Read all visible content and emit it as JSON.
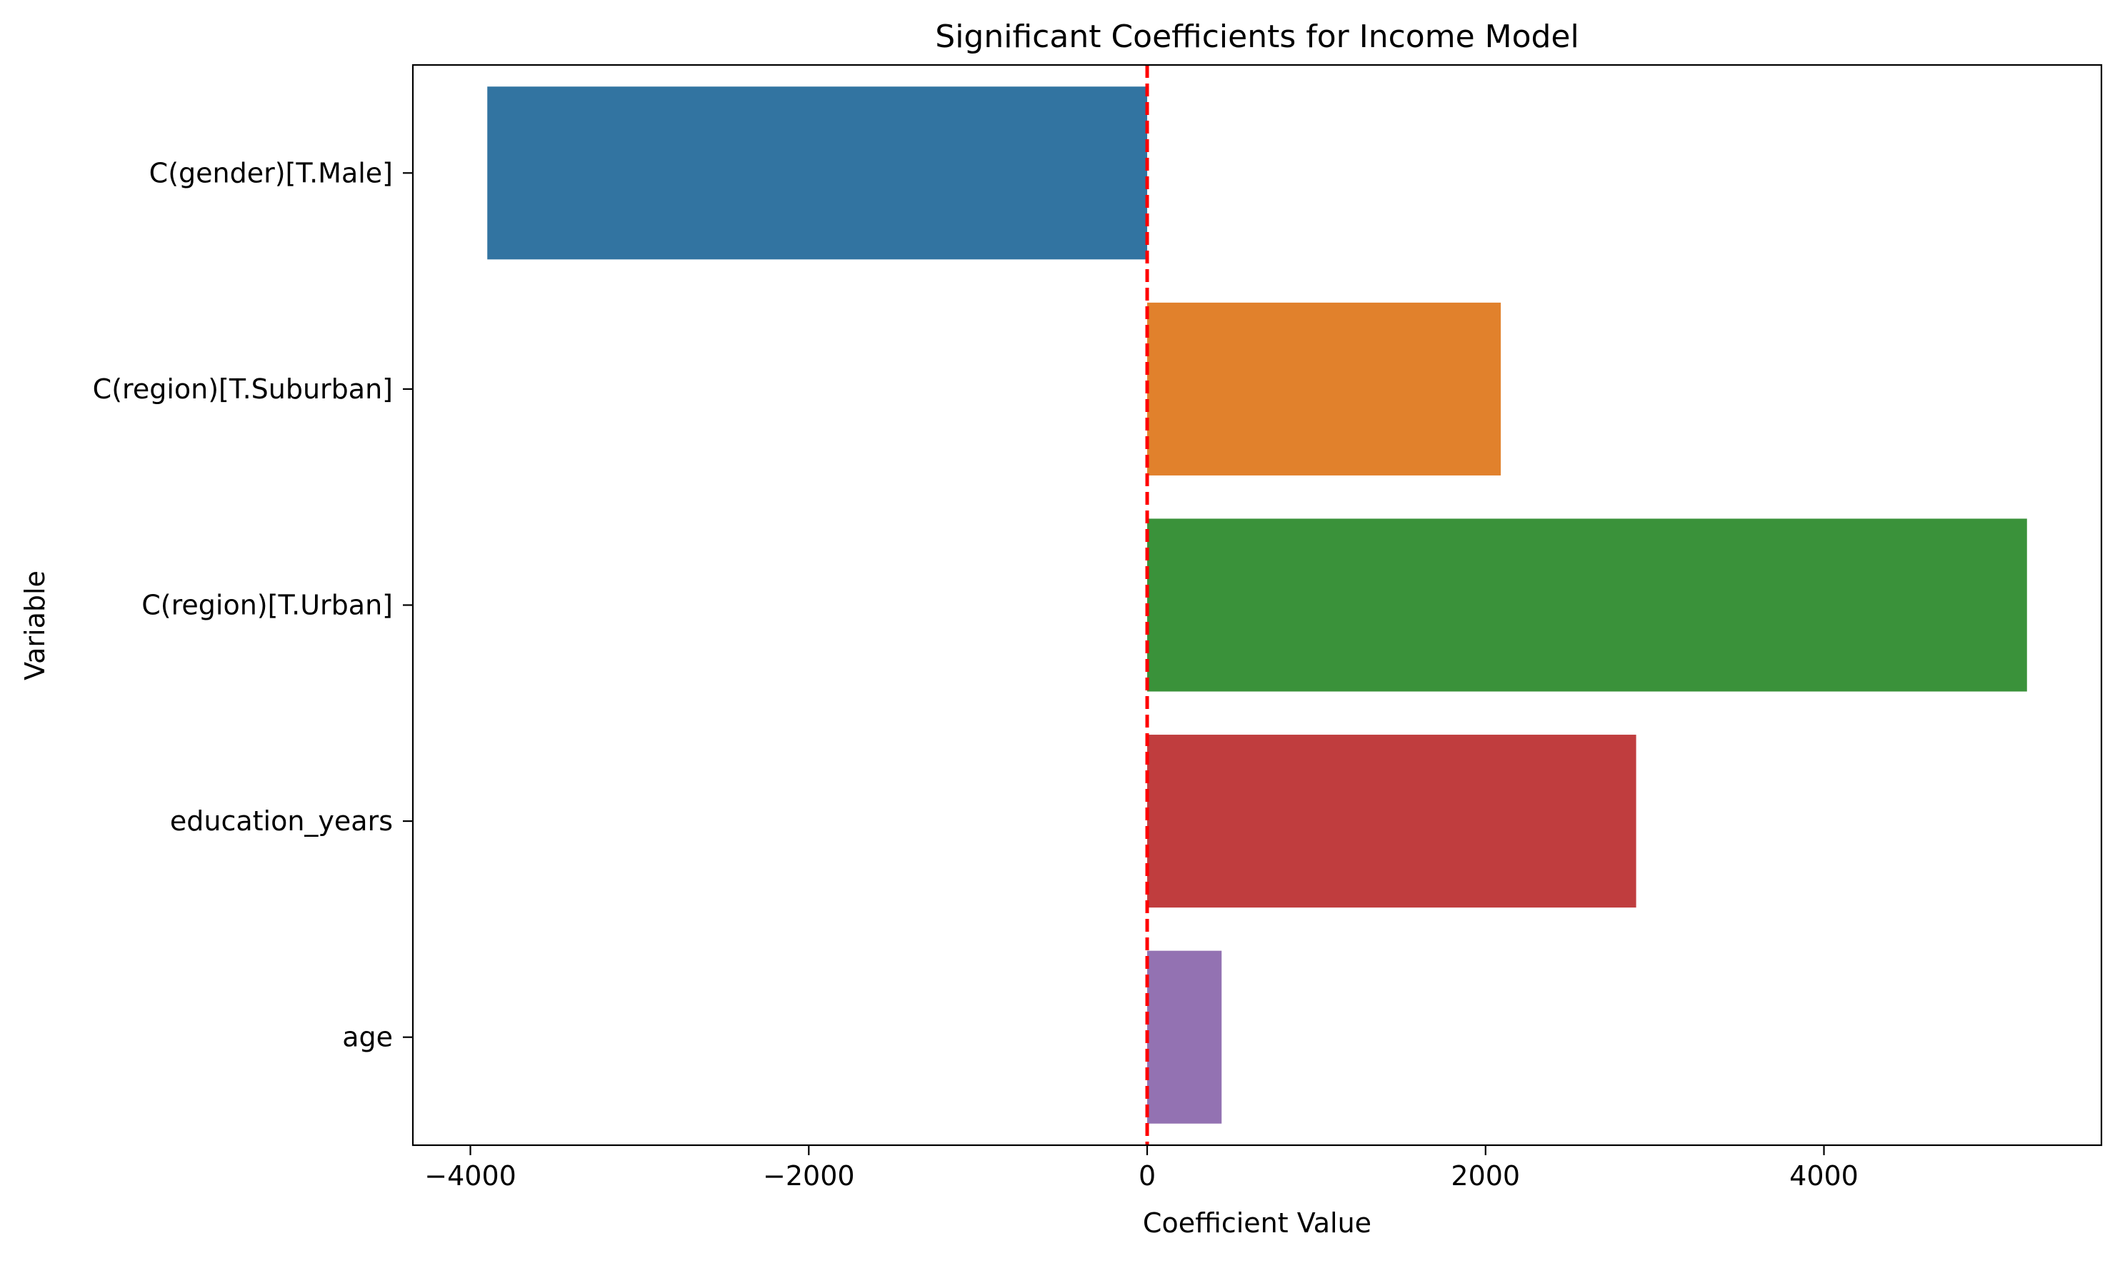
{
  "chart_data": {
    "type": "bar",
    "orientation": "horizontal",
    "title": "Significant Coefficients for Income Model",
    "xlabel": "Coefficient Value",
    "ylabel": "Variable",
    "categories": [
      "C(gender)[T.Male]",
      "C(region)[T.Suburban]",
      "C(region)[T.Urban]",
      "education_years",
      "age"
    ],
    "values": [
      -3900,
      2090,
      5200,
      2890,
      440
    ],
    "colors": [
      "#3274a1",
      "#e1812c",
      "#3a923a",
      "#c03d3e",
      "#9372b2"
    ],
    "xlim": [
      -4340,
      5640
    ],
    "xticks": [
      -4000,
      -2000,
      0,
      2000,
      4000
    ],
    "xtick_labels": [
      "−4000",
      "−2000",
      "0",
      "2000",
      "4000"
    ],
    "reference_line": {
      "x": 0,
      "color": "#ff0000",
      "style": "dashed"
    },
    "grid": false,
    "legend": "none"
  }
}
